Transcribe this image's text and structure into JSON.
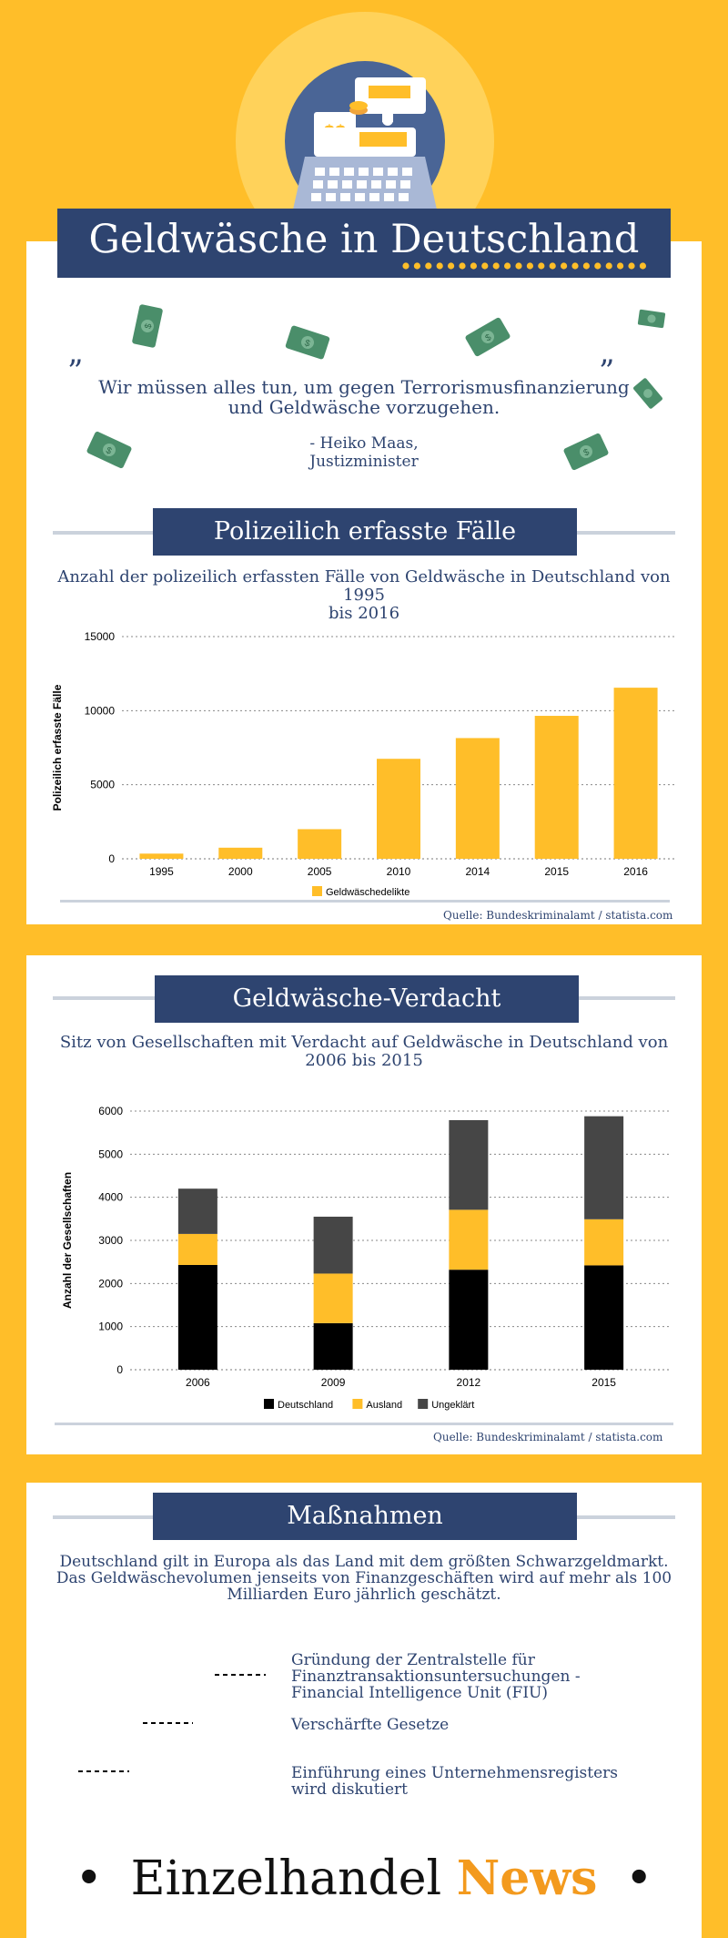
{
  "header": {
    "title": "Geldwäsche in Deutschland",
    "icon": "cash-register-icon",
    "colors": {
      "background": "#FFBE29",
      "navy": "#2E4470",
      "yellow": "#FFBE29",
      "money_green": "#4A8E6A"
    }
  },
  "quote": {
    "open_mark": "”",
    "close_mark": "”",
    "text_line1": "Wir müssen alles tun, um gegen Terrorismusfinanzierung",
    "text_line2": "und Geldwäsche vorzugehen.",
    "author_line1": "- Heiko Maas,",
    "author_line2": "Justizminister"
  },
  "section1": {
    "banner": "Polizeilich erfasste Fälle",
    "subtitle_line1": "Anzahl der polizeilich erfassten Fälle von Geldwäsche in Deutschland von 1995",
    "subtitle_line2": "bis 2016",
    "source": "Quelle: Bundeskriminalamt / statista.com"
  },
  "section2": {
    "banner": "Geldwäsche-Verdacht",
    "subtitle_line1": "Sitz von Gesellschaften mit Verdacht auf Geldwäsche in Deutschland von",
    "subtitle_line2": "2006 bis 2015",
    "source": "Quelle: Bundeskriminalamt / statista.com"
  },
  "section3": {
    "banner": "Maßnahmen",
    "intro_line1": "Deutschland gilt in Europa als das Land mit dem größten Schwarzgeldmarkt.",
    "intro_line2": "Das Geldwäschevolumen jenseits von Finanzgeschäften wird auf mehr als 100",
    "intro_line3": "Milliarden Euro jährlich geschätzt.",
    "measures": [
      {
        "line1": "Gründung der Zentralstelle für",
        "line2": "Finanztransaktionsuntersuchungen -",
        "line3": "Financial Intelligence Unit (FIU)"
      },
      {
        "line1": "Verschärfte Gesetze"
      },
      {
        "line1": "Einführung eines Unternehmensregisters",
        "line2": "wird diskutiert"
      }
    ]
  },
  "footer": {
    "brand_part1": "Einzelhandel",
    "brand_part2": "News",
    "bullet": "•"
  },
  "chart_data": [
    {
      "type": "bar",
      "title": "Anzahl der polizeilich erfassten Fälle von Geldwäsche in Deutschland von 1995 bis 2016",
      "ylabel": "Polizeilich erfasste Fälle",
      "xlabel": "",
      "categories": [
        "1995",
        "2000",
        "2005",
        "2010",
        "2014",
        "2015",
        "2016"
      ],
      "series": [
        {
          "name": "Geldwäschedelikte",
          "color": "#FFBE29",
          "values": [
            350,
            750,
            2000,
            6750,
            8150,
            9650,
            11550
          ]
        }
      ],
      "ylim": [
        0,
        15000
      ],
      "yticks": [
        0,
        5000,
        10000,
        15000
      ],
      "grid": true,
      "legend": "bottom-center"
    },
    {
      "type": "bar",
      "stacked": true,
      "title": "Sitz von Gesellschaften mit Verdacht auf Geldwäsche in Deutschland von 2006 bis 2015",
      "ylabel": "Anzahl der Gesellschaften",
      "xlabel": "",
      "categories": [
        "2006",
        "2009",
        "2012",
        "2015"
      ],
      "series": [
        {
          "name": "Deutschland",
          "color": "#000000",
          "values": [
            2430,
            1080,
            2320,
            2420
          ]
        },
        {
          "name": "Ausland",
          "color": "#FFBE29",
          "values": [
            720,
            1150,
            1390,
            1070
          ]
        },
        {
          "name": "Ungeklärt",
          "color": "#464646",
          "values": [
            1050,
            1320,
            2080,
            2390
          ]
        }
      ],
      "ylim": [
        0,
        6000
      ],
      "yticks": [
        0,
        1000,
        2000,
        3000,
        4000,
        5000,
        6000
      ],
      "grid": true,
      "legend": "bottom-center"
    }
  ]
}
